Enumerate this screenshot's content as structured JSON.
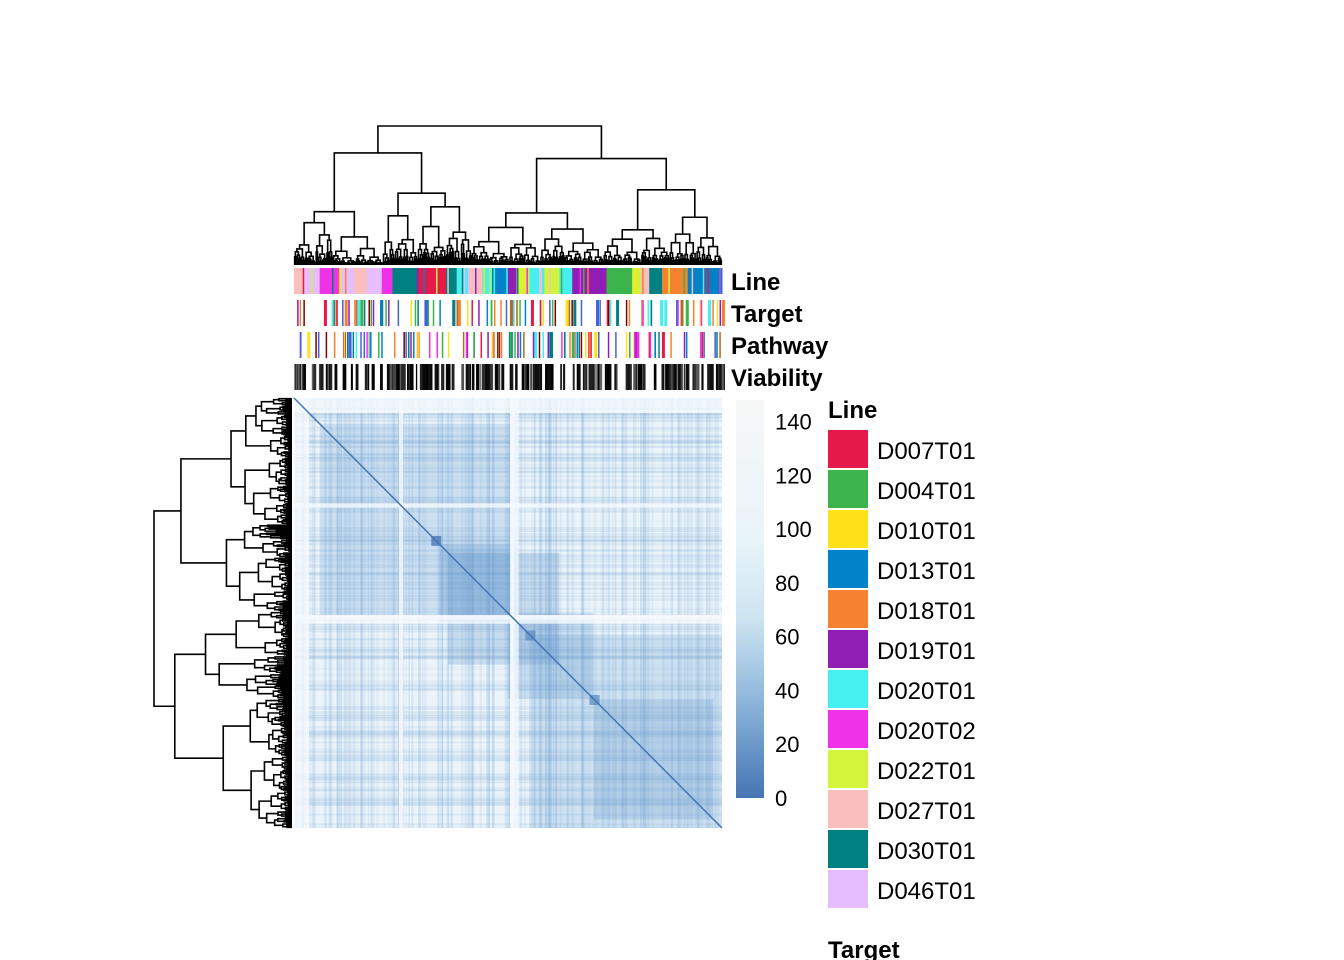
{
  "chart_data": {
    "type": "heatmap",
    "title": "",
    "matrix_kind": "clustered distance matrix",
    "annotation_tracks": [
      "Line",
      "Target",
      "Pathway",
      "Viability"
    ],
    "colorbar": {
      "ticks": [
        0,
        20,
        40,
        60,
        80,
        100,
        120,
        140
      ],
      "range": [
        0,
        148
      ],
      "low_color": "#4575b4",
      "mid_color": "#e0f0f8",
      "high_color": "#f7f7f7"
    },
    "line_legend": {
      "title": "Line",
      "entries": [
        {
          "label": "D007T01",
          "color": "#e6194b"
        },
        {
          "label": "D004T01",
          "color": "#3cb44b"
        },
        {
          "label": "D010T01",
          "color": "#ffe119"
        },
        {
          "label": "D013T01",
          "color": "#0082c8"
        },
        {
          "label": "D018T01",
          "color": "#f58231"
        },
        {
          "label": "D019T01",
          "color": "#911eb4"
        },
        {
          "label": "D020T01",
          "color": "#46f0f0"
        },
        {
          "label": "D020T02",
          "color": "#f032e6"
        },
        {
          "label": "D022T01",
          "color": "#d2f53c"
        },
        {
          "label": "D027T01",
          "color": "#fabebe"
        },
        {
          "label": "D030T01",
          "color": "#008080"
        },
        {
          "label": "D046T01",
          "color": "#e6beff"
        }
      ]
    },
    "next_legend_title": "Target"
  }
}
